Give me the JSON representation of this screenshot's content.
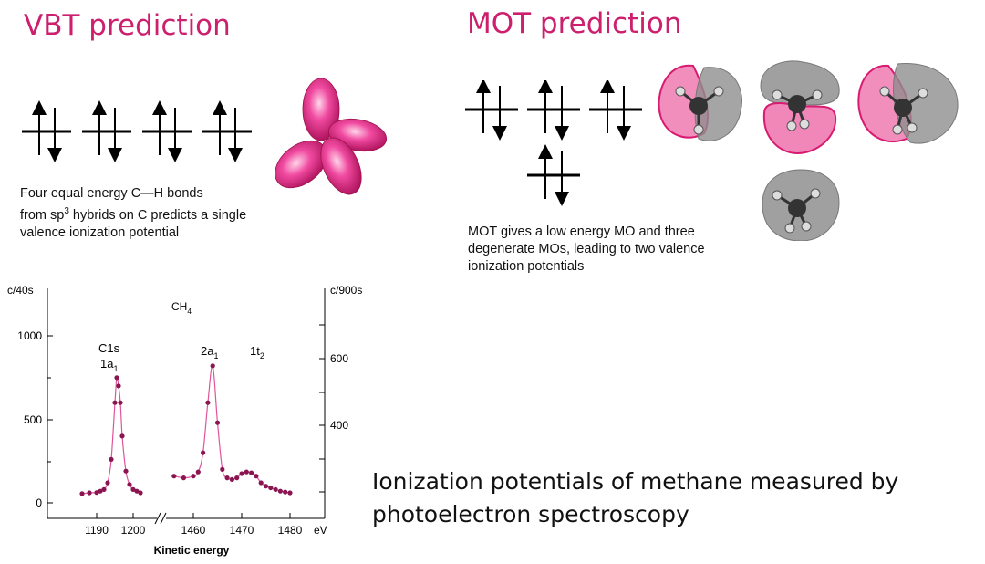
{
  "vbt": {
    "title": "VBT prediction",
    "description_line1": "Four equal energy C—H bonds",
    "description_line2_pre": "from sp",
    "description_line2_sup": "3",
    "description_line2_post": " hybrids on C predicts a single",
    "description_line3": "valence ionization potential"
  },
  "mot": {
    "title": "MOT prediction",
    "description_line1": "MOT gives a low energy MO and three",
    "description_line2": "degenerate MOs, leading to two valence",
    "description_line3": "ionization potentials"
  },
  "spectrum": {
    "left_axis_label": "c/40s",
    "right_axis_label": "c/900s",
    "molecule": "CH",
    "molecule_sub": "4",
    "left_ticks": [
      "1000",
      "500",
      "0"
    ],
    "right_ticks": [
      "600",
      "400"
    ],
    "x_ticks_left": [
      "1190",
      "1200"
    ],
    "x_ticks_right": [
      "1460",
      "1470",
      "1480"
    ],
    "x_unit": "eV",
    "x_label": "Kinetic energy",
    "peak1_line1": "C1s",
    "peak1_line2": "1a",
    "peak1_sub": "1",
    "peak2_label": "2a",
    "peak2_sub": "1",
    "peak3_label": "1t",
    "peak3_sub": "2"
  },
  "chart_data": {
    "type": "line",
    "xlabel": "Kinetic energy",
    "x_unit": "eV",
    "left_axis": {
      "label": "c/40s",
      "ylim": [
        0,
        1000
      ]
    },
    "right_axis": {
      "label": "c/900s",
      "ticks": [
        400,
        600
      ]
    },
    "broken_x_axis": true,
    "series": [
      {
        "x": [
          1186,
          1188,
          1190,
          1191,
          1192,
          1193,
          1194,
          1195,
          1195.5,
          1196,
          1196.5,
          1197,
          1198,
          1199,
          1200,
          1201,
          1202
        ],
        "y": [
          55,
          60,
          62,
          70,
          80,
          120,
          260,
          600,
          750,
          700,
          600,
          400,
          190,
          110,
          80,
          70,
          60
        ]
      },
      {
        "x": [
          1456,
          1458,
          1460,
          1461,
          1462,
          1463,
          1464,
          1465,
          1466,
          1467,
          1468,
          1469,
          1470,
          1471,
          1472,
          1473,
          1474,
          1475,
          1476,
          1477,
          1478,
          1479,
          1480
        ],
        "y": [
          160,
          150,
          160,
          185,
          300,
          600,
          820,
          480,
          200,
          150,
          140,
          150,
          175,
          185,
          180,
          160,
          120,
          100,
          90,
          80,
          70,
          65,
          60
        ]
      }
    ],
    "annotations": [
      "CH4",
      "C1s 1a1",
      "2a1",
      "1t2"
    ]
  }
}
